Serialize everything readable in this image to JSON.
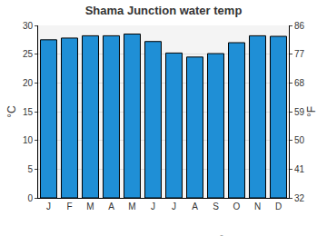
{
  "chart_data": {
    "type": "bar",
    "title": "Shama Junction water temp",
    "categories": [
      "J",
      "F",
      "M",
      "A",
      "M",
      "J",
      "J",
      "A",
      "S",
      "O",
      "N",
      "D"
    ],
    "values": [
      27.5,
      27.8,
      28.2,
      28.2,
      28.5,
      27.2,
      25.2,
      24.5,
      25.1,
      27.0,
      28.2,
      28.1
    ],
    "color": "#1f8fd6",
    "ylabel": "°C",
    "ylim": [
      0,
      30
    ],
    "yticks": [
      0,
      5,
      10,
      15,
      20,
      25,
      30
    ],
    "y2label": "°F",
    "y2lim": [
      32,
      86
    ],
    "y2ticks": [
      32,
      41,
      50,
      59,
      68,
      77,
      86
    ],
    "grid": true,
    "annotations": [
      "© www.seatemperature.org"
    ]
  }
}
